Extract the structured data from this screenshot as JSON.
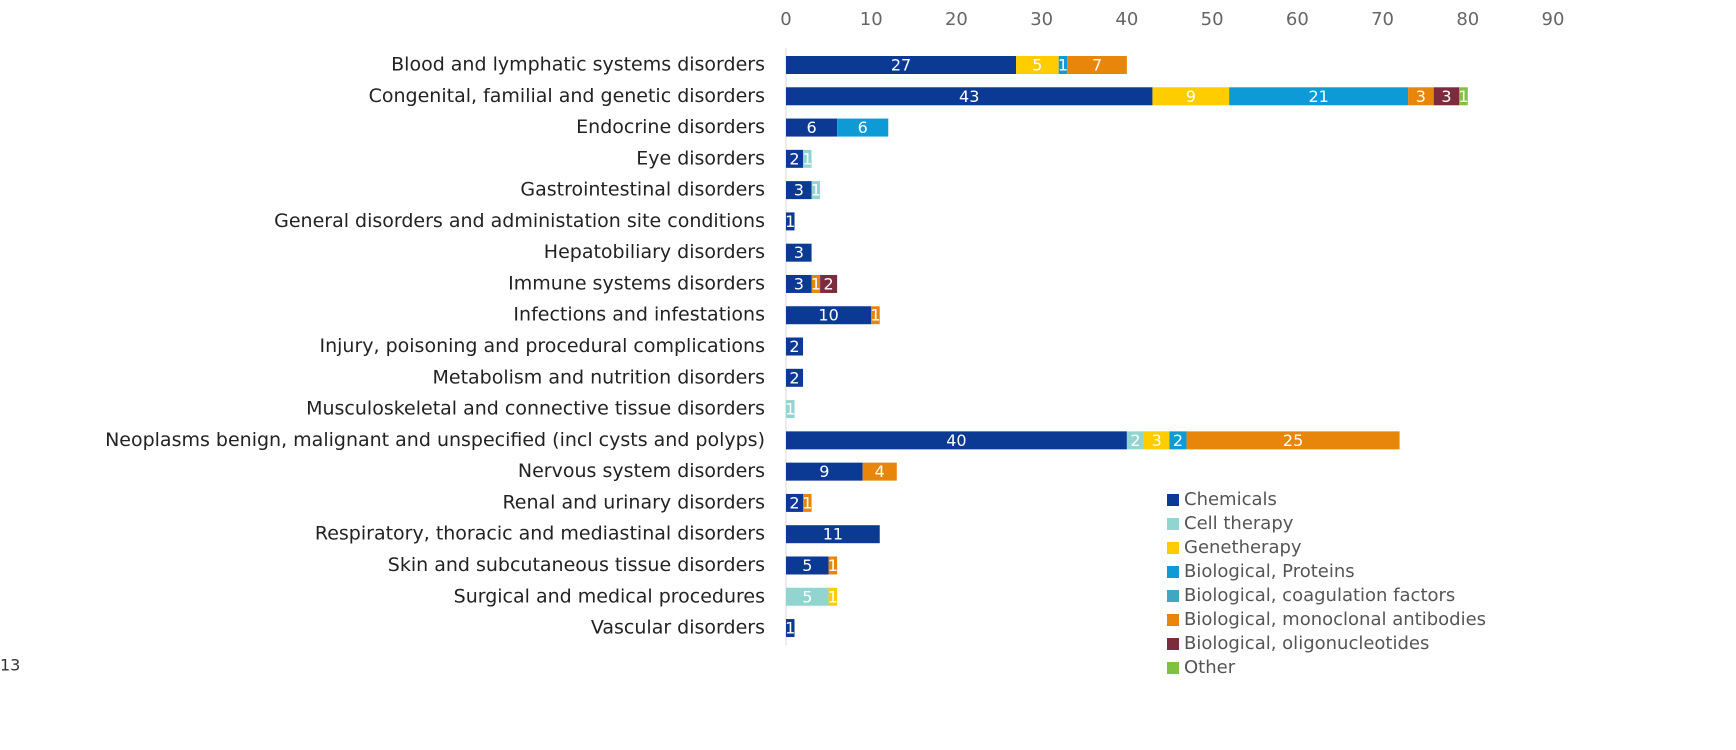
{
  "chart_data": {
    "type": "stacked_barh",
    "categories": [
      "Blood and lymphatic systems disorders",
      "Congenital, familial and genetic disorders",
      "Endocrine disorders",
      "Eye disorders",
      "Gastrointestinal disorders",
      "General disorders and administation site conditions",
      "Hepatobiliary disorders",
      "Immune systems disorders",
      "Infections and infestations",
      "Injury, poisoning and procedural complications",
      "Metabolism and nutrition disorders",
      "Musculoskeletal and connective tissue disorders",
      "Neoplasms benign, malignant and unspecified (incl cysts and polyps)",
      "Nervous system disorders",
      "Renal and urinary disorders",
      "Respiratory, thoracic and mediastinal disorders",
      "Skin and subcutaneous tissue disorders",
      "Surgical and medical procedures",
      "Vascular disorders"
    ],
    "series": [
      {
        "name": "Chemicals",
        "color": "#0a3a94",
        "values": [
          27,
          43,
          6,
          2,
          3,
          1,
          3,
          3,
          10,
          2,
          2,
          null,
          40,
          9,
          2,
          11,
          5,
          null,
          1
        ]
      },
      {
        "name": "Cell therapy",
        "color": "#92d5d0",
        "values": [
          null,
          null,
          null,
          1,
          1,
          null,
          null,
          null,
          null,
          null,
          null,
          1,
          2,
          null,
          null,
          null,
          null,
          5,
          null
        ]
      },
      {
        "name": "Genetherapy",
        "color": "#ffcc00",
        "values": [
          5,
          9,
          null,
          null,
          null,
          null,
          null,
          null,
          null,
          null,
          null,
          null,
          3,
          null,
          null,
          null,
          null,
          1,
          null
        ]
      },
      {
        "name": "Biological, Proteins",
        "color": "#0e9ad7",
        "values": [
          1,
          21,
          6,
          null,
          null,
          null,
          null,
          null,
          null,
          null,
          null,
          null,
          2,
          null,
          null,
          null,
          null,
          null,
          null
        ]
      },
      {
        "name": "Biological, coagulation factors",
        "color": "#41a6c2",
        "values": [
          null,
          null,
          null,
          null,
          null,
          null,
          null,
          null,
          null,
          null,
          null,
          null,
          null,
          null,
          null,
          null,
          null,
          null,
          null
        ]
      },
      {
        "name": "Biological, monoclonal antibodies",
        "color": "#e8860c",
        "values": [
          7,
          3,
          null,
          null,
          null,
          null,
          null,
          1,
          1,
          null,
          null,
          null,
          25,
          4,
          1,
          null,
          1,
          null,
          null
        ]
      },
      {
        "name": "Biological, oligonucleotides",
        "color": "#7b2d3e",
        "values": [
          null,
          3,
          null,
          null,
          null,
          null,
          null,
          2,
          null,
          null,
          null,
          null,
          null,
          null,
          null,
          null,
          null,
          null,
          null
        ]
      },
      {
        "name": "Other",
        "color": "#7fc241",
        "values": [
          null,
          1,
          null,
          null,
          null,
          null,
          null,
          null,
          null,
          null,
          null,
          null,
          null,
          null,
          null,
          null,
          null,
          null,
          null
        ]
      }
    ],
    "xlim": [
      0,
      90
    ],
    "xticks": [
      0,
      10,
      20,
      30,
      40,
      50,
      60,
      70,
      80,
      90
    ]
  },
  "page_number": "13"
}
